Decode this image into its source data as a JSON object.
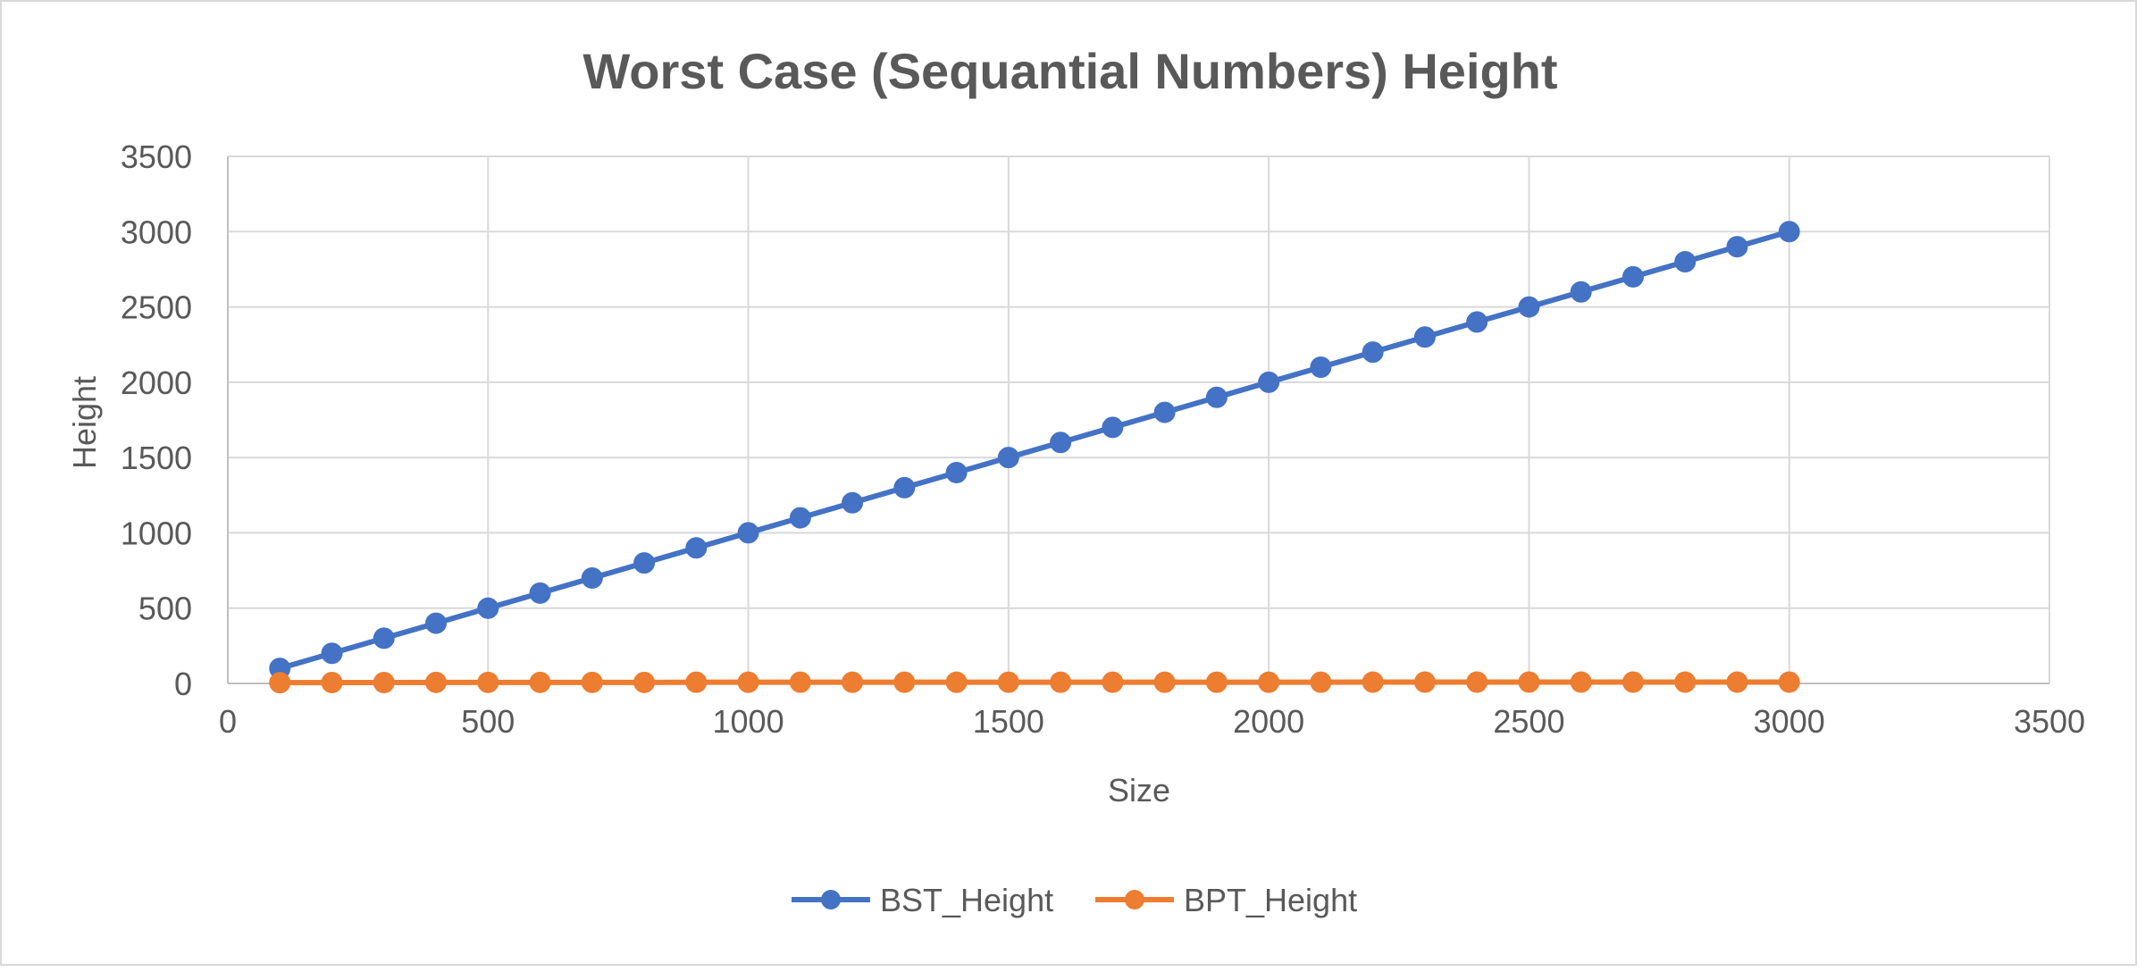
{
  "chart_data": {
    "type": "scatter",
    "title": "Worst Case (Sequantial Numbers) Height",
    "xlabel": "Size",
    "ylabel": "Height",
    "xlim": [
      0,
      3500
    ],
    "ylim": [
      0,
      3500
    ],
    "x_ticks": [
      0,
      500,
      1000,
      1500,
      2000,
      2500,
      3000,
      3500
    ],
    "y_ticks": [
      0,
      500,
      1000,
      1500,
      2000,
      2500,
      3000,
      3500
    ],
    "grid": true,
    "legend_position": "bottom",
    "markers": true,
    "lines": true,
    "x": [
      100,
      200,
      300,
      400,
      500,
      600,
      700,
      800,
      900,
      1000,
      1100,
      1200,
      1300,
      1400,
      1500,
      1600,
      1700,
      1800,
      1900,
      2000,
      2100,
      2200,
      2300,
      2400,
      2500,
      2600,
      2700,
      2800,
      2900,
      3000
    ],
    "series": [
      {
        "name": "BST_Height",
        "color": "#4472c4",
        "values": [
          100,
          200,
          300,
          400,
          500,
          600,
          700,
          800,
          900,
          1000,
          1100,
          1200,
          1300,
          1400,
          1500,
          1600,
          1700,
          1800,
          1900,
          2000,
          2100,
          2200,
          2300,
          2400,
          2500,
          2600,
          2700,
          2800,
          2900,
          3000
        ]
      },
      {
        "name": "BPT_Height",
        "color": "#ed7d31",
        "values": [
          5,
          6,
          6,
          7,
          7,
          7,
          7,
          7,
          8,
          8,
          8,
          8,
          8,
          8,
          8,
          8,
          8,
          8,
          8,
          8,
          8,
          9,
          9,
          9,
          9,
          9,
          9,
          9,
          9,
          9
        ]
      }
    ]
  }
}
